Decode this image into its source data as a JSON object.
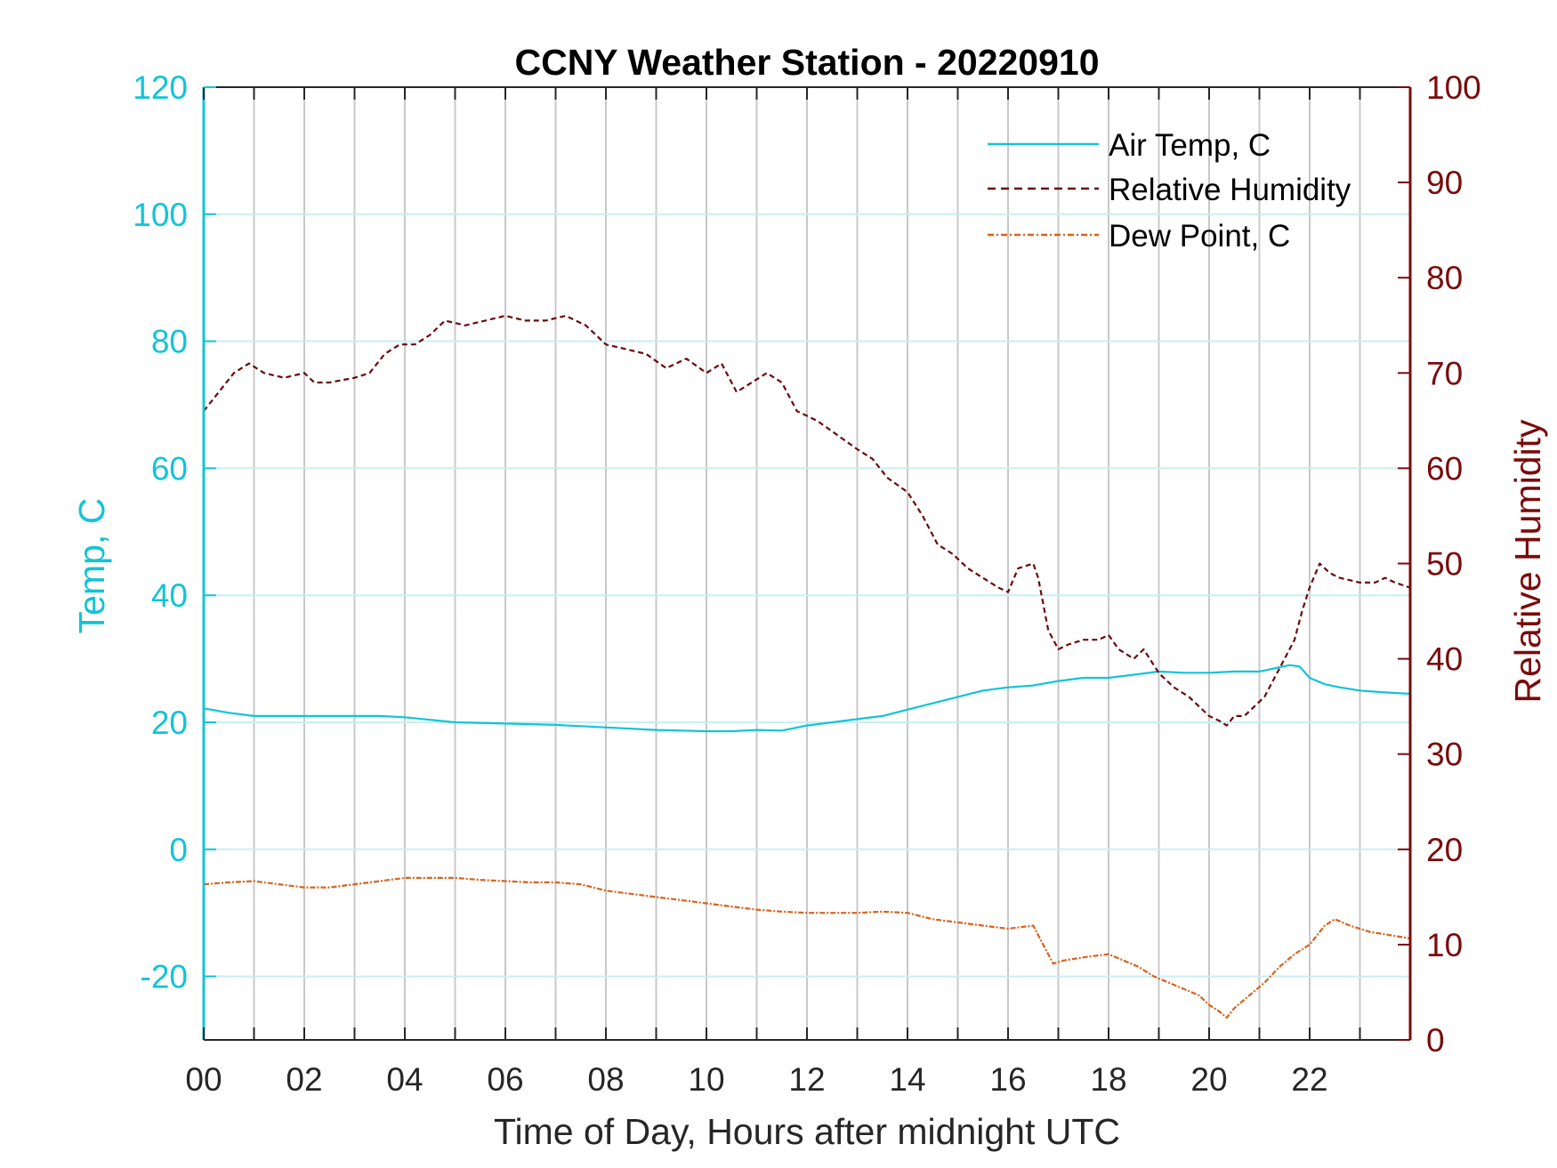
{
  "colors": {
    "temp_axis": "#12C4D6",
    "rh_axis": "#7A0B0B",
    "air_temp": "#12C4D6",
    "rh": "#6B0A0A",
    "dew_point": "#D9621A",
    "grid_x": "#C8C8C8",
    "grid_y": "#C9EEF4"
  },
  "chart_data": {
    "type": "line",
    "title": "CCNY Weather Station - 20220910",
    "xlabel": "Time of Day, Hours after midnight UTC",
    "ylabel_left": "Temp, C",
    "ylabel_right": "Relative Humidity",
    "xlim": [
      0,
      24
    ],
    "ylim_left": [
      -30,
      120
    ],
    "ylim_right": [
      0,
      100
    ],
    "x_tick_values": [
      0,
      2,
      4,
      6,
      8,
      10,
      12,
      14,
      16,
      18,
      20,
      22
    ],
    "x_tick_labels": [
      "00",
      "02",
      "04",
      "06",
      "08",
      "10",
      "12",
      "14",
      "16",
      "18",
      "20",
      "22"
    ],
    "y_left_tick_values": [
      -20,
      0,
      20,
      40,
      60,
      80,
      100,
      120
    ],
    "y_left_tick_labels": [
      "-20",
      "0",
      "20",
      "40",
      "60",
      "80",
      "100",
      "120"
    ],
    "y_right_tick_values": [
      0,
      10,
      20,
      30,
      40,
      50,
      60,
      70,
      80,
      90,
      100
    ],
    "y_right_tick_labels": [
      "0",
      "10",
      "20",
      "30",
      "40",
      "50",
      "60",
      "70",
      "80",
      "90",
      "100"
    ],
    "grid": {
      "x_hourly": true,
      "y_left": true
    },
    "legend_position": "top-right",
    "series": [
      {
        "name": "Air Temp, C",
        "axis": "left",
        "style": "solid",
        "x": [
          0,
          0.5,
          1,
          2,
          3,
          3.5,
          4,
          5,
          6,
          7,
          8,
          9,
          10,
          10.5,
          11,
          11.5,
          12,
          12.5,
          13,
          13.5,
          14,
          14.5,
          15,
          15.5,
          16,
          16.5,
          17,
          17.5,
          18,
          18.5,
          19,
          19.5,
          20,
          20.5,
          21,
          21.3,
          21.6,
          21.8,
          22,
          22.3,
          22.6,
          23,
          23.5,
          23.98
        ],
        "y": [
          22.2,
          21.5,
          21.0,
          21.0,
          21.0,
          21.0,
          20.8,
          20.0,
          19.8,
          19.6,
          19.2,
          18.8,
          18.6,
          18.6,
          18.8,
          18.7,
          19.5,
          20.0,
          20.5,
          21.0,
          22.0,
          23.0,
          24.0,
          25.0,
          25.5,
          25.8,
          26.5,
          27.0,
          27.0,
          27.5,
          28.0,
          27.8,
          27.8,
          28.0,
          28.0,
          28.5,
          29.0,
          28.8,
          27.0,
          26.0,
          25.5,
          25.0,
          24.7,
          24.5
        ]
      },
      {
        "name": "Relative Humidity",
        "axis": "right",
        "style": "dashed",
        "x": [
          0,
          0.3,
          0.6,
          0.9,
          1.2,
          1.6,
          2,
          2.2,
          2.5,
          3,
          3.3,
          3.6,
          3.9,
          4.2,
          4.5,
          4.8,
          5.2,
          5.6,
          6,
          6.4,
          6.8,
          7.2,
          7.6,
          8,
          8.4,
          8.8,
          9.2,
          9.6,
          10,
          10.3,
          10.6,
          10.9,
          11.2,
          11.5,
          11.8,
          12.2,
          12.6,
          13,
          13.3,
          13.6,
          14,
          14.3,
          14.6,
          14.9,
          15.2,
          15.5,
          15.8,
          16,
          16.2,
          16.5,
          16.6,
          16.8,
          17,
          17.2,
          17.5,
          17.8,
          18,
          18.2,
          18.5,
          18.7,
          19,
          19.3,
          19.6,
          19.8,
          20,
          20.2,
          20.35,
          20.5,
          20.7,
          20.9,
          21.1,
          21.3,
          21.5,
          21.7,
          21.85,
          22,
          22.2,
          22.4,
          22.6,
          23,
          23.3,
          23.5,
          23.7,
          23.98
        ],
        "y": [
          66,
          68,
          70,
          71,
          70,
          69.5,
          70,
          69,
          69,
          69.5,
          70,
          72,
          73,
          73,
          74,
          75.5,
          75,
          75.5,
          76,
          75.5,
          75.5,
          76,
          75,
          73,
          72.5,
          72,
          70.5,
          71.5,
          70,
          71,
          68,
          69,
          70,
          69,
          66,
          65,
          63.5,
          62,
          61,
          59,
          57.5,
          55,
          52,
          51,
          49.5,
          48.5,
          47.5,
          47,
          49.5,
          50,
          48.5,
          43,
          41,
          41.5,
          42,
          42,
          42.5,
          41,
          40,
          41,
          38.5,
          37,
          36,
          35,
          34,
          33.5,
          33,
          34,
          34,
          35,
          36,
          38,
          40,
          42,
          45,
          47.5,
          50,
          49,
          48.5,
          48,
          48,
          48.5,
          48,
          47.5
        ]
      },
      {
        "name": "Dew Point, C",
        "axis": "left",
        "style": "dashdot",
        "x": [
          0,
          0.5,
          1,
          1.5,
          2,
          2.5,
          3,
          3.5,
          4,
          4.5,
          5,
          5.5,
          6,
          6.5,
          7,
          7.5,
          8,
          8.5,
          9,
          9.5,
          10,
          10.5,
          11,
          11.5,
          12,
          12.5,
          13,
          13.5,
          14,
          14.5,
          15,
          15.5,
          16,
          16.5,
          16.7,
          16.9,
          17.1,
          17.5,
          18,
          18.3,
          18.6,
          18.9,
          19.2,
          19.5,
          19.8,
          20,
          20.2,
          20.35,
          20.5,
          20.8,
          21.1,
          21.4,
          21.7,
          22,
          22.3,
          22.5,
          22.8,
          23.2,
          23.6,
          23.98
        ],
        "y": [
          -5.5,
          -5.2,
          -5.0,
          -5.5,
          -6.0,
          -6.0,
          -5.5,
          -5.0,
          -4.5,
          -4.5,
          -4.5,
          -4.8,
          -5.0,
          -5.2,
          -5.2,
          -5.5,
          -6.5,
          -7.0,
          -7.5,
          -8.0,
          -8.5,
          -9.0,
          -9.5,
          -9.8,
          -10.0,
          -10.0,
          -10.0,
          -9.8,
          -10.0,
          -11.0,
          -11.5,
          -12.0,
          -12.5,
          -12.0,
          -15.0,
          -18.0,
          -17.5,
          -17.0,
          -16.5,
          -17.5,
          -18.5,
          -20.0,
          -21.0,
          -22.0,
          -23.0,
          -24.5,
          -25.5,
          -26.5,
          -25.0,
          -23.0,
          -21.0,
          -18.5,
          -16.5,
          -15.0,
          -12.0,
          -11.0,
          -12.0,
          -13.0,
          -13.5,
          -14.0
        ]
      }
    ]
  },
  "legend": {
    "items": [
      "Air Temp, C",
      "Relative Humidity",
      "Dew Point, C"
    ]
  }
}
